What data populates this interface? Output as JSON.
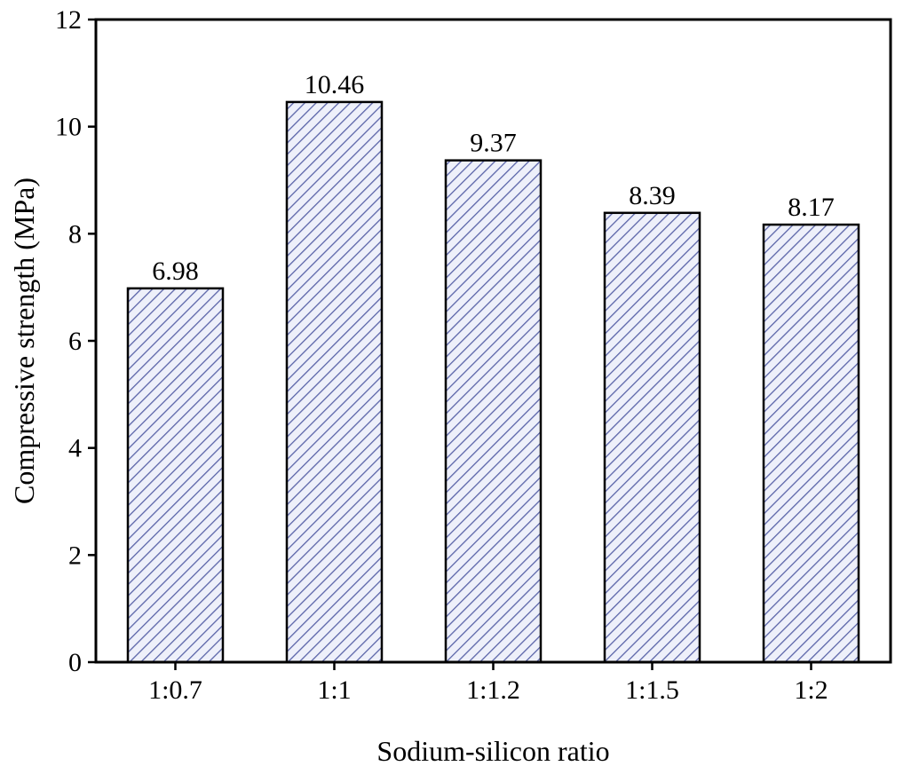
{
  "chart_data": {
    "type": "bar",
    "xlabel": "Sodium-silicon ratio",
    "ylabel": "Compressive strength (MPa)",
    "categories": [
      "1:0.7",
      "1:1",
      "1:1.2",
      "1:1.5",
      "1:2"
    ],
    "values": [
      6.98,
      10.46,
      9.37,
      8.39,
      8.17
    ],
    "data_labels": [
      "6.98",
      "10.46",
      "9.37",
      "8.39",
      "8.17"
    ],
    "ylim": [
      0,
      12
    ],
    "yticks": [
      0,
      2,
      4,
      6,
      8,
      10,
      12
    ],
    "ytick_labels": [
      "0",
      "2",
      "4",
      "6",
      "8",
      "10",
      "12"
    ],
    "grid": false,
    "legend": "none",
    "bar_fill": "hatched",
    "colors": {
      "hatch_line": "#5a64a8",
      "hatch_background": "#eef0fa",
      "bar_edge": "#000000",
      "axis": "#000000"
    }
  }
}
